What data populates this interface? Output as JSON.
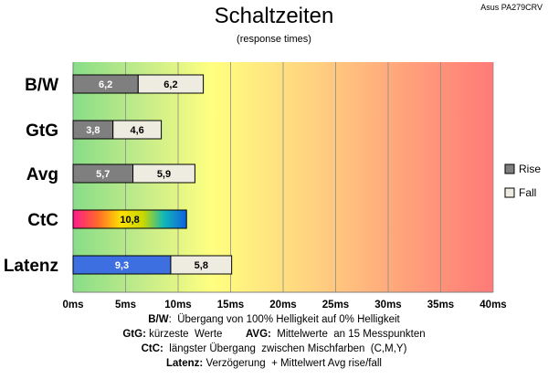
{
  "corner_label": "Asus PA279CRV",
  "chart_data": {
    "type": "bar",
    "orientation": "horizontal",
    "stacked": true,
    "title": "Schaltzeiten",
    "subtitle": "(response times)",
    "categories": [
      "B/W",
      "GtG",
      "Avg",
      "CtC",
      "Latenz"
    ],
    "series": [
      {
        "name": "Rise",
        "values": [
          6.2,
          3.8,
          5.7,
          null,
          null
        ],
        "labels": [
          "6,2",
          "3,8",
          "5,7",
          "",
          ""
        ]
      },
      {
        "name": "Fall",
        "values": [
          6.2,
          4.6,
          5.9,
          null,
          5.8
        ],
        "labels": [
          "6,2",
          "4,6",
          "5,9",
          "",
          "5,8"
        ]
      }
    ],
    "special": [
      {
        "category": "CtC",
        "value": 10.8,
        "label": "10,8",
        "fill": "rainbow"
      },
      {
        "category": "Latenz",
        "value": 9.3,
        "label": "9,3",
        "fill": "#3d6fe0"
      }
    ],
    "xlim": [
      0,
      40
    ],
    "xticks": [
      "0ms",
      "5ms",
      "10ms",
      "15ms",
      "20ms",
      "25ms",
      "30ms",
      "35ms",
      "40ms"
    ],
    "xtick_values": [
      0,
      5,
      10,
      15,
      20,
      25,
      30,
      35,
      40
    ],
    "legend_position": "right",
    "grid": true,
    "colors": {
      "rise": "#7f7f7f",
      "fall": "#eeece1",
      "latency": "#3d6fe0"
    }
  },
  "notes": [
    {
      "parts": [
        {
          "b": "B/W"
        },
        {
          "t": ":  Übergang von 100% Helligkeit auf 0% Helligkeit"
        }
      ]
    },
    {
      "parts": [
        {
          "b": "GtG:"
        },
        {
          "t": " kürzeste  Werte        "
        },
        {
          "b": "AVG:"
        },
        {
          "t": "  Mittelwerte  an 15 Messpunkten"
        }
      ]
    },
    {
      "parts": [
        {
          "b": "CtC:"
        },
        {
          "t": "  längster Übergang  zwischen Mischfarben  (C,M,Y)"
        }
      ]
    },
    {
      "parts": [
        {
          "b": "Latenz:"
        },
        {
          "t": " Verzögerung  + Mittelwert Avg rise/fall"
        }
      ]
    }
  ]
}
